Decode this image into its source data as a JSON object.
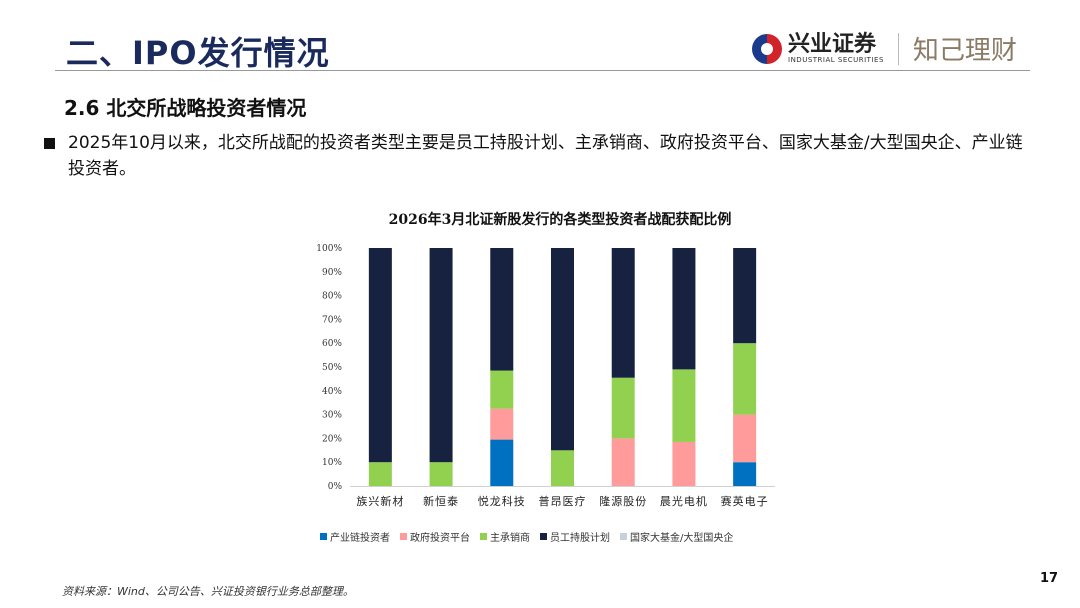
{
  "header": {
    "title": "二、IPO发行情况",
    "logo_cn": "兴业证券",
    "logo_en": "INDUSTRIAL SECURITIES",
    "slogan": "知己理财"
  },
  "section": "2.6 北交所战略投资者情况",
  "bullet": "2025年10月以来，北交所战配的投资者类型主要是员工持股计划、主承销商、政府投资平台、国家大基金/大型国央企、产业链投资者。",
  "chart_data": {
    "type": "bar",
    "stacked": true,
    "title": "2026年3月北证新股发行的各类型投资者战配获配比例",
    "xlabel": "",
    "ylabel": "",
    "ylim": [
      0,
      100
    ],
    "yticks": [
      "0%",
      "10%",
      "20%",
      "30%",
      "40%",
      "50%",
      "60%",
      "70%",
      "80%",
      "90%",
      "100%"
    ],
    "categories": [
      "族兴新材",
      "新恒泰",
      "悦龙科技",
      "普昂医疗",
      "隆源股份",
      "晨光电机",
      "赛英电子"
    ],
    "legend_position": "bottom",
    "series": [
      {
        "name": "产业链投资者",
        "color": "#0070c0",
        "values": [
          0,
          0,
          19.5,
          0,
          0,
          0,
          10
        ]
      },
      {
        "name": "政府投资平台",
        "color": "#ff9b9b",
        "values": [
          0,
          0,
          13,
          0,
          20,
          18.5,
          20
        ]
      },
      {
        "name": "主承销商",
        "color": "#92d050",
        "values": [
          10,
          10,
          16,
          15,
          25.5,
          30.5,
          30
        ]
      },
      {
        "name": "员工持股计划",
        "color": "#16223f",
        "values": [
          90,
          90,
          51.5,
          85,
          54.5,
          51,
          40
        ]
      },
      {
        "name": "国家大基金/大型国央企",
        "color": "#c8d0da",
        "values": [
          0,
          0,
          0,
          0,
          0,
          0,
          0
        ]
      }
    ]
  },
  "footer": {
    "source": "资料来源：Wind、公司公告、兴证投资银行业务总部整理。",
    "page": "17"
  }
}
